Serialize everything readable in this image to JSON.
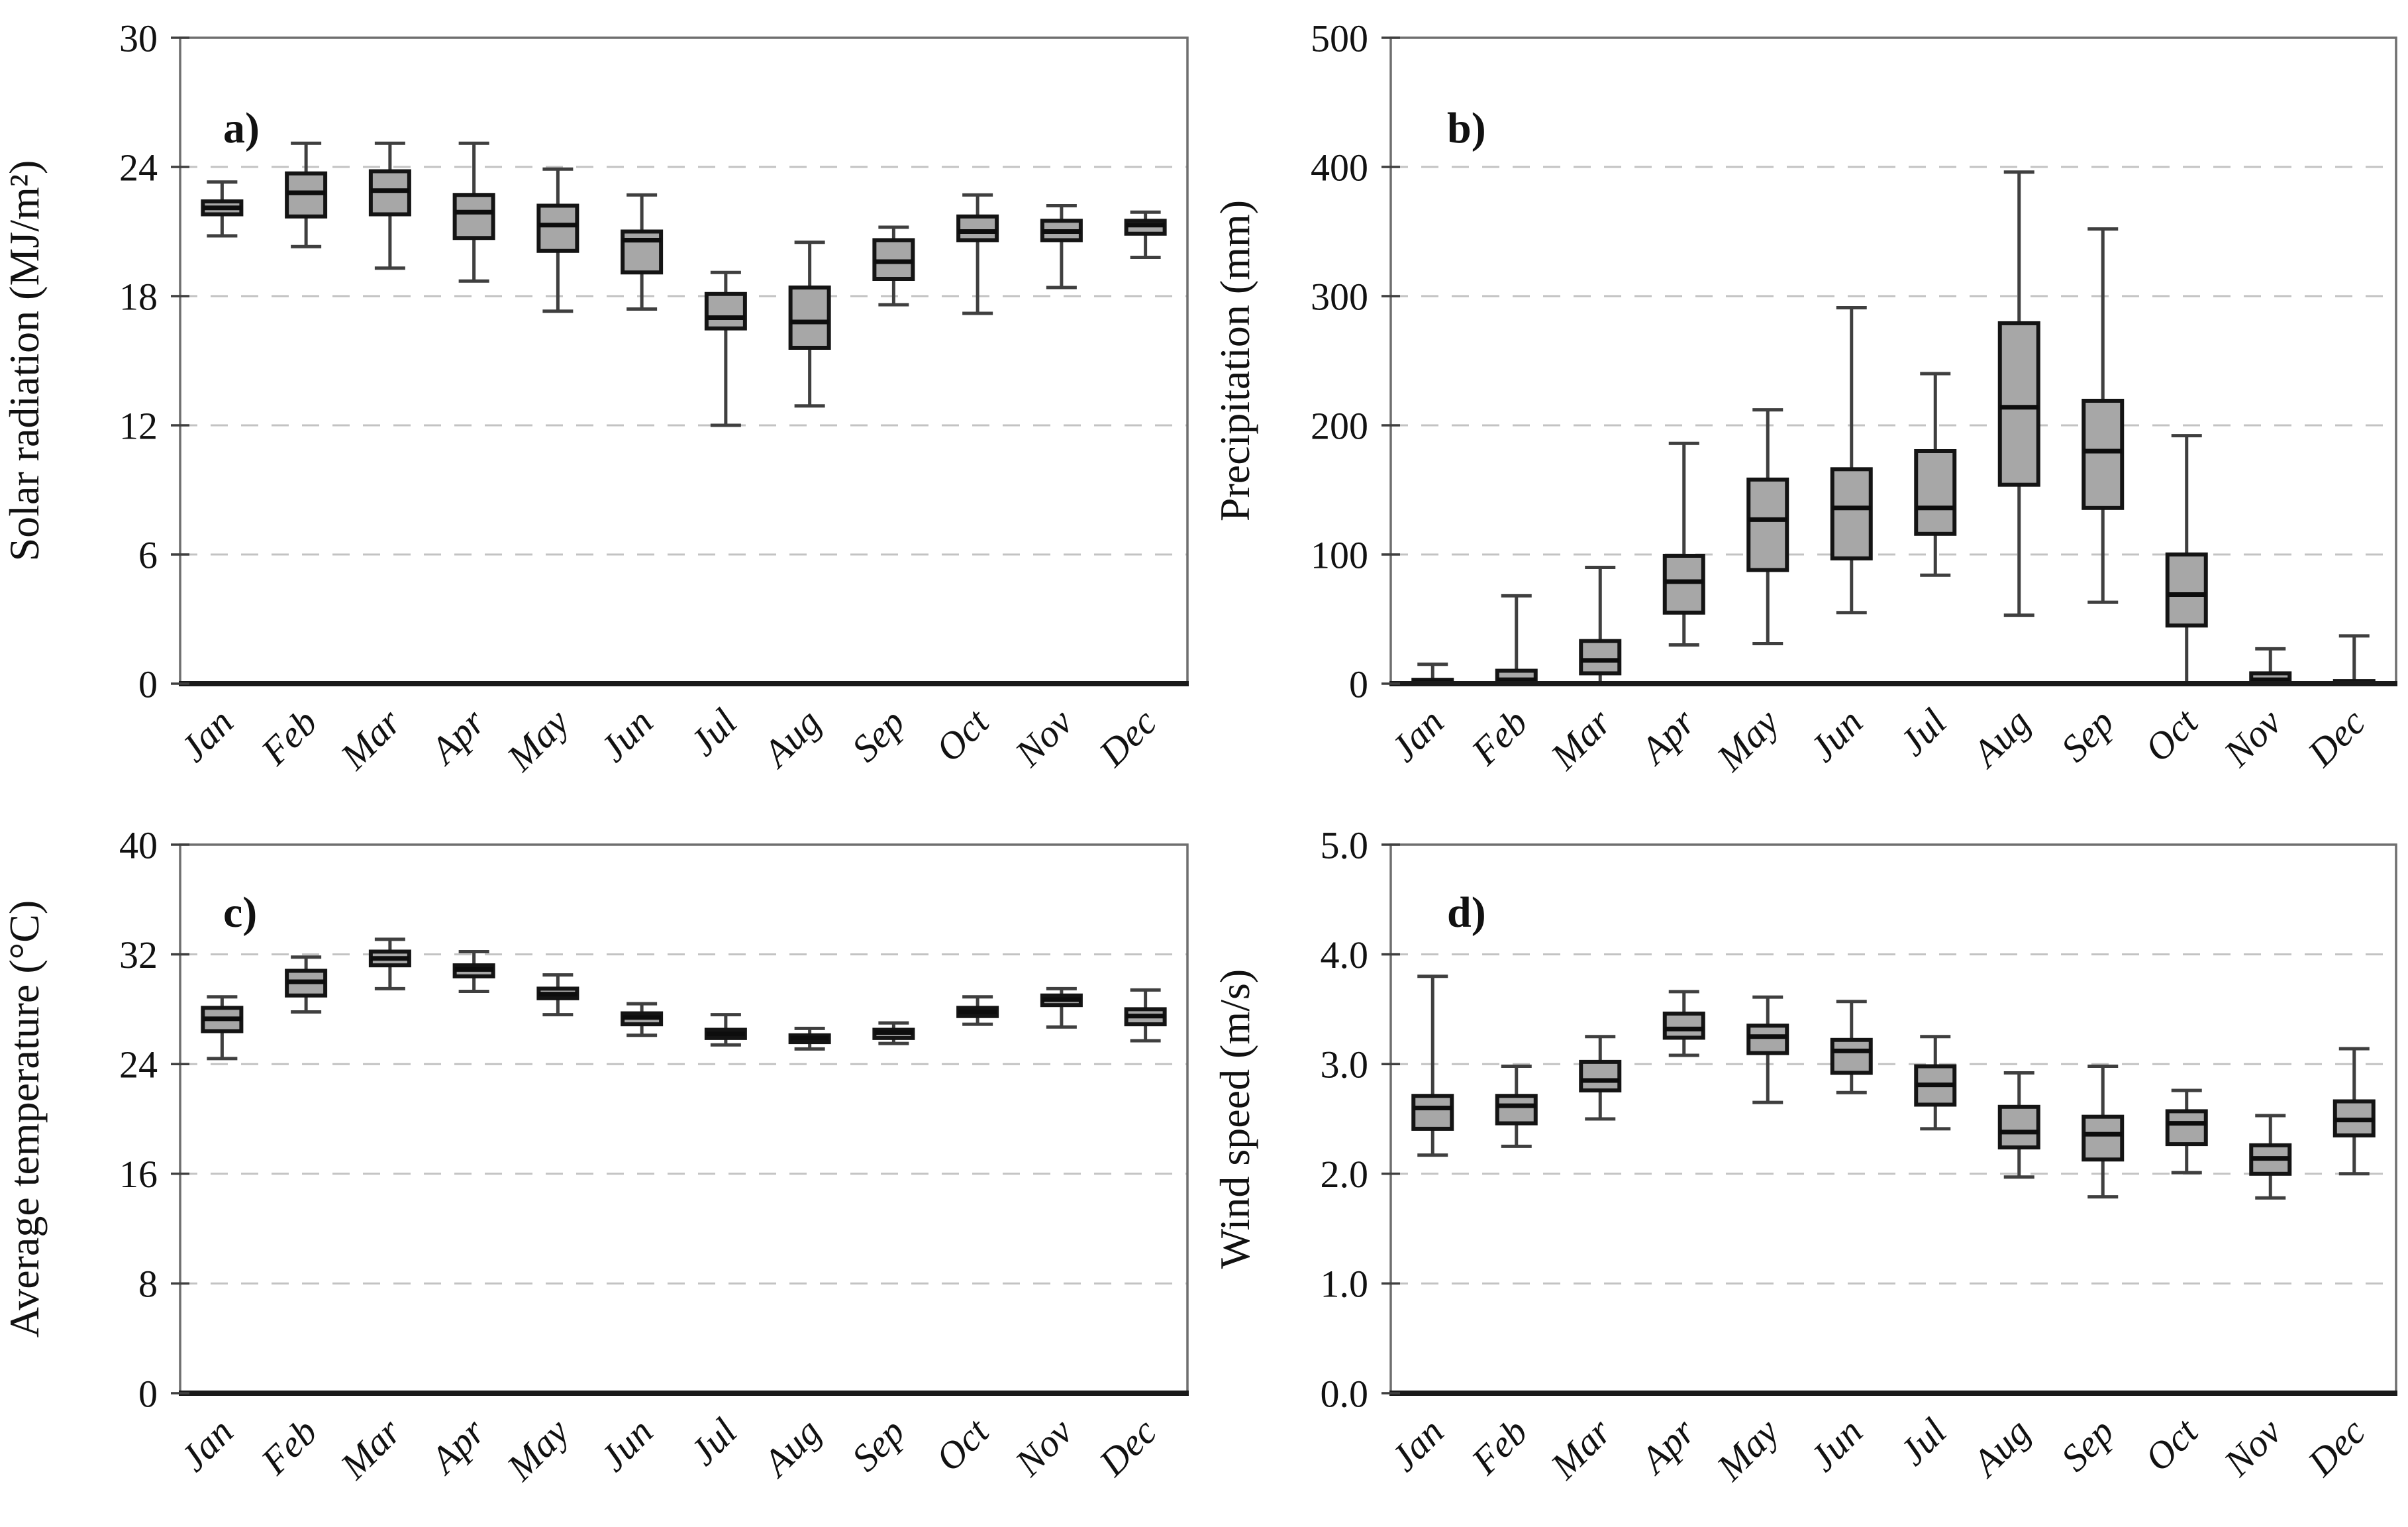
{
  "figure": {
    "background": "#ffffff",
    "months": [
      "Jan",
      "Feb",
      "Mar",
      "Apr",
      "May",
      "Jun",
      "Jul",
      "Aug",
      "Sep",
      "Oct",
      "Nov",
      "Dec"
    ]
  },
  "colors": {
    "box_fill": "#a7a7a7",
    "box_border": "#141414",
    "median": "#0d0d0d",
    "whisker": "#3f3f3f",
    "gridline": "#c3c3c3",
    "plot_border": "#6f6f6f",
    "axis_line": "#1a1a1a",
    "text": "#111111"
  },
  "chart_data": [
    {
      "type": "box",
      "panel_label": "a)",
      "ylabel": "Solar radiation (MJ/m²)",
      "xlabel": "",
      "ylim": [
        0,
        30
      ],
      "ytick_step": 6,
      "ytick_labels": [
        "0",
        "6",
        "12",
        "18",
        "24",
        "30"
      ],
      "grid": "dashed-horizontal",
      "legend": "none",
      "categories": [
        "Jan",
        "Feb",
        "Mar",
        "Apr",
        "May",
        "Jun",
        "Jul",
        "Aug",
        "Sep",
        "Oct",
        "Nov",
        "Dec"
      ],
      "series": [
        {
          "month": "Jan",
          "low": 20.8,
          "q1": 21.8,
          "median": 22.1,
          "q3": 22.4,
          "high": 23.3
        },
        {
          "month": "Feb",
          "low": 20.3,
          "q1": 21.7,
          "median": 22.8,
          "q3": 23.7,
          "high": 25.1
        },
        {
          "month": "Mar",
          "low": 19.3,
          "q1": 21.8,
          "median": 22.9,
          "q3": 23.8,
          "high": 25.1
        },
        {
          "month": "Apr",
          "low": 18.7,
          "q1": 20.7,
          "median": 21.9,
          "q3": 22.7,
          "high": 25.1
        },
        {
          "month": "May",
          "low": 17.3,
          "q1": 20.1,
          "median": 21.3,
          "q3": 22.2,
          "high": 23.9
        },
        {
          "month": "Jun",
          "low": 17.4,
          "q1": 19.1,
          "median": 20.6,
          "q3": 21.0,
          "high": 22.7
        },
        {
          "month": "Jul",
          "low": 12.0,
          "q1": 16.5,
          "median": 17.0,
          "q3": 18.1,
          "high": 19.1
        },
        {
          "month": "Aug",
          "low": 12.9,
          "q1": 15.6,
          "median": 16.8,
          "q3": 18.4,
          "high": 20.5
        },
        {
          "month": "Sep",
          "low": 17.6,
          "q1": 18.8,
          "median": 19.6,
          "q3": 20.6,
          "high": 21.2
        },
        {
          "month": "Oct",
          "low": 17.2,
          "q1": 20.6,
          "median": 21.0,
          "q3": 21.7,
          "high": 22.7
        },
        {
          "month": "Nov",
          "low": 18.4,
          "q1": 20.6,
          "median": 21.0,
          "q3": 21.5,
          "high": 22.2
        },
        {
          "month": "Dec",
          "low": 19.8,
          "q1": 20.9,
          "median": 21.3,
          "q3": 21.5,
          "high": 21.9
        }
      ]
    },
    {
      "type": "box",
      "panel_label": "b)",
      "ylabel": "Precipitation (mm)",
      "xlabel": "",
      "ylim": [
        0,
        500
      ],
      "ytick_step": 100,
      "ytick_labels": [
        "0",
        "100",
        "200",
        "300",
        "400",
        "500"
      ],
      "grid": "dashed-horizontal",
      "legend": "none",
      "categories": [
        "Jan",
        "Feb",
        "Mar",
        "Apr",
        "May",
        "Jun",
        "Jul",
        "Aug",
        "Sep",
        "Oct",
        "Nov",
        "Dec"
      ],
      "series": [
        {
          "month": "Jan",
          "low": 0,
          "q1": 0,
          "median": 1,
          "q3": 3,
          "high": 15
        },
        {
          "month": "Feb",
          "low": 0,
          "q1": 0,
          "median": 3,
          "q3": 10,
          "high": 68
        },
        {
          "month": "Mar",
          "low": 0,
          "q1": 8,
          "median": 18,
          "q3": 33,
          "high": 90
        },
        {
          "month": "Apr",
          "low": 30,
          "q1": 55,
          "median": 79,
          "q3": 99,
          "high": 186
        },
        {
          "month": "May",
          "low": 31,
          "q1": 88,
          "median": 127,
          "q3": 158,
          "high": 212
        },
        {
          "month": "Jun",
          "low": 55,
          "q1": 97,
          "median": 136,
          "q3": 166,
          "high": 291
        },
        {
          "month": "Jul",
          "low": 84,
          "q1": 116,
          "median": 136,
          "q3": 180,
          "high": 240
        },
        {
          "month": "Aug",
          "low": 53,
          "q1": 154,
          "median": 214,
          "q3": 279,
          "high": 396
        },
        {
          "month": "Sep",
          "low": 63,
          "q1": 136,
          "median": 180,
          "q3": 219,
          "high": 352
        },
        {
          "month": "Oct",
          "low": 0,
          "q1": 45,
          "median": 69,
          "q3": 100,
          "high": 192
        },
        {
          "month": "Nov",
          "low": 0,
          "q1": 0,
          "median": 3,
          "q3": 8,
          "high": 27
        },
        {
          "month": "Dec",
          "low": 0,
          "q1": 0,
          "median": 0,
          "q3": 2,
          "high": 37
        }
      ]
    },
    {
      "type": "box",
      "panel_label": "c)",
      "ylabel": "Average temperature (°C)",
      "xlabel": "",
      "ylim": [
        0,
        40
      ],
      "ytick_step": 8,
      "ytick_labels": [
        "0",
        "8",
        "16",
        "24",
        "32",
        "40"
      ],
      "grid": "dashed-horizontal",
      "legend": "none",
      "categories": [
        "Jan",
        "Feb",
        "Mar",
        "Apr",
        "May",
        "Jun",
        "Jul",
        "Aug",
        "Sep",
        "Oct",
        "Nov",
        "Dec"
      ],
      "series": [
        {
          "month": "Jan",
          "low": 24.4,
          "q1": 26.4,
          "median": 27.3,
          "q3": 28.1,
          "high": 28.9
        },
        {
          "month": "Feb",
          "low": 27.8,
          "q1": 29.0,
          "median": 30.0,
          "q3": 30.8,
          "high": 31.8
        },
        {
          "month": "Mar",
          "low": 29.5,
          "q1": 31.2,
          "median": 31.7,
          "q3": 32.2,
          "high": 33.1
        },
        {
          "month": "Apr",
          "low": 29.3,
          "q1": 30.4,
          "median": 30.9,
          "q3": 31.2,
          "high": 32.2
        },
        {
          "month": "May",
          "low": 27.6,
          "q1": 28.8,
          "median": 29.1,
          "q3": 29.5,
          "high": 30.5
        },
        {
          "month": "Jun",
          "low": 26.1,
          "q1": 26.9,
          "median": 27.4,
          "q3": 27.7,
          "high": 28.4
        },
        {
          "month": "Jul",
          "low": 25.4,
          "q1": 25.9,
          "median": 26.2,
          "q3": 26.5,
          "high": 27.6
        },
        {
          "month": "Aug",
          "low": 25.1,
          "q1": 25.6,
          "median": 25.9,
          "q3": 26.1,
          "high": 26.6
        },
        {
          "month": "Sep",
          "low": 25.5,
          "q1": 25.9,
          "median": 26.3,
          "q3": 26.5,
          "high": 27.0
        },
        {
          "month": "Oct",
          "low": 26.9,
          "q1": 27.5,
          "median": 27.8,
          "q3": 28.1,
          "high": 28.9
        },
        {
          "month": "Nov",
          "low": 26.7,
          "q1": 28.3,
          "median": 28.7,
          "q3": 29.0,
          "high": 29.5
        },
        {
          "month": "Dec",
          "low": 25.7,
          "q1": 26.9,
          "median": 27.5,
          "q3": 28.0,
          "high": 29.4
        }
      ]
    },
    {
      "type": "box",
      "panel_label": "d)",
      "ylabel": "Wind speed (m/s)",
      "xlabel": "",
      "ylim": [
        0,
        5
      ],
      "ytick_step": 1,
      "ytick_labels": [
        "0.0",
        "1.0",
        "2.0",
        "3.0",
        "4.0",
        "5.0"
      ],
      "grid": "dashed-horizontal",
      "legend": "none",
      "categories": [
        "Jan",
        "Feb",
        "Mar",
        "Apr",
        "May",
        "Jun",
        "Jul",
        "Aug",
        "Sep",
        "Oct",
        "Nov",
        "Dec"
      ],
      "series": [
        {
          "month": "Jan",
          "low": 2.17,
          "q1": 2.41,
          "median": 2.6,
          "q3": 2.71,
          "high": 3.8
        },
        {
          "month": "Feb",
          "low": 2.25,
          "q1": 2.46,
          "median": 2.62,
          "q3": 2.71,
          "high": 2.98
        },
        {
          "month": "Mar",
          "low": 2.5,
          "q1": 2.76,
          "median": 2.85,
          "q3": 3.02,
          "high": 3.25
        },
        {
          "month": "Apr",
          "low": 3.08,
          "q1": 3.24,
          "median": 3.32,
          "q3": 3.46,
          "high": 3.66
        },
        {
          "month": "May",
          "low": 2.65,
          "q1": 3.1,
          "median": 3.25,
          "q3": 3.35,
          "high": 3.61
        },
        {
          "month": "Jun",
          "low": 2.74,
          "q1": 2.92,
          "median": 3.12,
          "q3": 3.22,
          "high": 3.57
        },
        {
          "month": "Jul",
          "low": 2.41,
          "q1": 2.63,
          "median": 2.81,
          "q3": 2.98,
          "high": 3.25
        },
        {
          "month": "Aug",
          "low": 1.97,
          "q1": 2.24,
          "median": 2.38,
          "q3": 2.61,
          "high": 2.92
        },
        {
          "month": "Sep",
          "low": 1.79,
          "q1": 2.13,
          "median": 2.36,
          "q3": 2.52,
          "high": 2.98
        },
        {
          "month": "Oct",
          "low": 2.01,
          "q1": 2.27,
          "median": 2.46,
          "q3": 2.57,
          "high": 2.76
        },
        {
          "month": "Nov",
          "low": 1.78,
          "q1": 2.0,
          "median": 2.14,
          "q3": 2.26,
          "high": 2.53
        },
        {
          "month": "Dec",
          "low": 2.0,
          "q1": 2.35,
          "median": 2.49,
          "q3": 2.66,
          "high": 3.14
        }
      ]
    }
  ]
}
